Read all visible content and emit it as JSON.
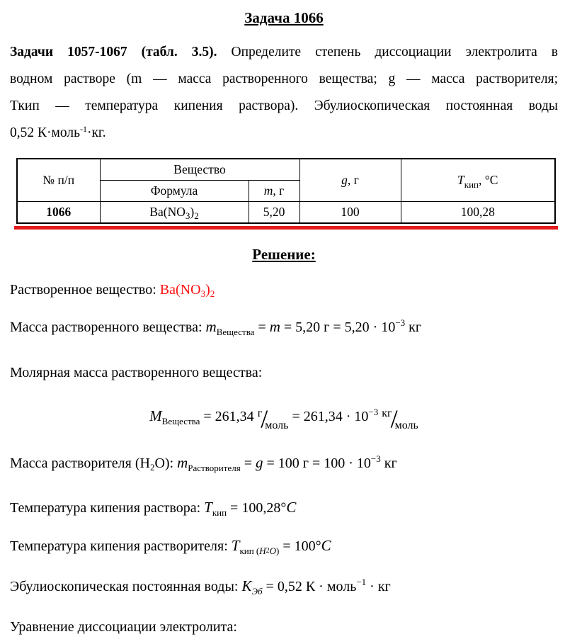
{
  "page": {
    "title": "Задача 1066"
  },
  "problem": {
    "line1_bold": "Задачи 1057-1067 (табл. 3.5).",
    "line1_rest": " Определите степень диссоциации электролита в",
    "line2": "водном растворе (m — масса растворенного вещества; g — масса растворителя;",
    "line3": "Ткип — температура кипения раствора). Эбулиоскопическая постоянная воды",
    "line4_a": "0,52 К·моль",
    "line4_sup": "-1",
    "line4_b": "·кг."
  },
  "table": {
    "num_header": "№ п/п",
    "substance_header": "Вещество",
    "formula_header": "Формула",
    "m_var": "m",
    "m_unit": ", г",
    "g_var": "g",
    "g_unit": ", г",
    "t_var": "T",
    "t_sub": "кип",
    "t_unit": ", °С",
    "row": {
      "num": "1066",
      "f1": "Ba(NO",
      "f2": "3",
      "f3": ")",
      "f4": "2",
      "m": "5,20",
      "g": "100",
      "t_boil": "100,28"
    }
  },
  "solution": {
    "heading": "Решение:",
    "dissolved": {
      "label": "Растворенное вещество: ",
      "f1": "Ba(NO",
      "f2": "3",
      "f3": ")",
      "f4": "2"
    },
    "mass_solute": {
      "label": "Масса растворенного вещества:  ",
      "v1": "m",
      "s1": "Вещества",
      "t1": " = ",
      "v2": "m",
      "t2": " = 5,20 г  = 5,20 · 10",
      "p1": "−3",
      "t3": "  кг"
    },
    "molar": {
      "label": "Молярная масса растворенного вещества:"
    },
    "molar_formula": {
      "v1": "M",
      "s1": "Вещества",
      "t1": " = 261,34 ",
      "num1": "г",
      "sl1": "/",
      "den1": "моль",
      "t2": "  = 261,34 · 10",
      "p1": "−3",
      "t3": "  ",
      "num2": "кг",
      "sl2": "/",
      "den2": "моль"
    },
    "solvent_mass": {
      "label_a": "Масса растворителя (H",
      "label_sub": "2",
      "label_b": "O): ",
      "v1": "m",
      "s1": "Растворителя",
      "t1": " = ",
      "v2": "g",
      "t2": " = 100 г  = 100 · 10",
      "p1": "−3",
      "t3": "  кг"
    },
    "t_boil_solution": {
      "label": "Температура кипения раствора: ",
      "v1": "T",
      "s1": "кип",
      "t1": " = 100,28°",
      "v2": "C"
    },
    "t_boil_solvent": {
      "label": "Температура кипения растворителя: ",
      "v1": "T",
      "s1": "кип ",
      "s2": "(",
      "s3": "H",
      "s4": "2",
      "s5": "O",
      "s6": ")",
      "t1": " = 100°",
      "v2": "C"
    },
    "ebullioscopic": {
      "label": "Эбулиоскопическая постоянная воды: ",
      "v1": "K",
      "s1": "Эб",
      "t1": " = 0,52 К · моль",
      "p1": "−1",
      "t2": " · кг"
    },
    "dissociation": {
      "label": "Уравнение диссоциации электролита:"
    }
  }
}
